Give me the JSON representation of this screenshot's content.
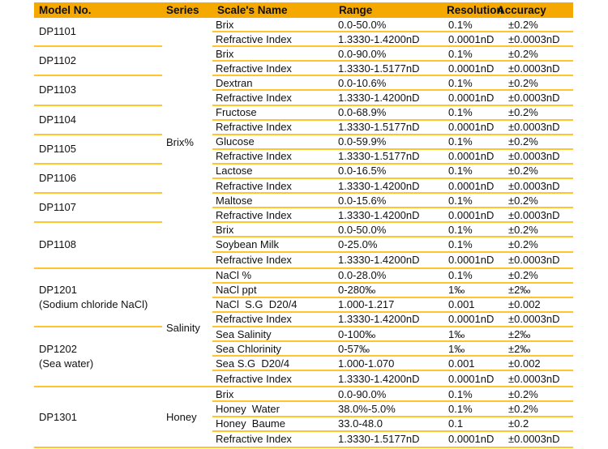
{
  "colors": {
    "header_bg": "#F5A800",
    "row_line": "#FFC42E",
    "text": "#111111"
  },
  "columns": [
    {
      "label": "Model No."
    },
    {
      "label": "Series"
    },
    {
      "label": "Scale's Name"
    },
    {
      "label": "Range"
    },
    {
      "label": "Resolution"
    },
    {
      "label": "Accuracy"
    }
  ],
  "sections": [
    {
      "series": "Brix%",
      "groups": [
        {
          "model": "DP1101",
          "note": "",
          "rows": [
            {
              "scale": "Brix",
              "range": "0.0-50.0%",
              "resolution": "0.1%",
              "accuracy": "±0.2%"
            },
            {
              "scale": "Refractive Index",
              "range": "1.3330-1.4200nD",
              "resolution": "0.0001nD",
              "accuracy": "±0.0003nD"
            }
          ]
        },
        {
          "model": "DP1102",
          "note": "",
          "rows": [
            {
              "scale": "Brix",
              "range": "0.0-90.0%",
              "resolution": "0.1%",
              "accuracy": "±0.2%"
            },
            {
              "scale": "Refractive Index",
              "range": "1.3330-1.5177nD",
              "resolution": "0.0001nD",
              "accuracy": "±0.0003nD"
            }
          ]
        },
        {
          "model": "DP1103",
          "note": "",
          "rows": [
            {
              "scale": "Dextran",
              "range": "0.0-10.6%",
              "resolution": "0.1%",
              "accuracy": "±0.2%"
            },
            {
              "scale": "Refractive Index",
              "range": "1.3330-1.4200nD",
              "resolution": "0.0001nD",
              "accuracy": "±0.0003nD"
            }
          ]
        },
        {
          "model": "DP1104",
          "note": "",
          "rows": [
            {
              "scale": "Fructose",
              "range": "0.0-68.9%",
              "resolution": "0.1%",
              "accuracy": "±0.2%"
            },
            {
              "scale": "Refractive Index",
              "range": "1.3330-1.5177nD",
              "resolution": "0.0001nD",
              "accuracy": "±0.0003nD"
            }
          ]
        },
        {
          "model": "DP1105",
          "note": "",
          "rows": [
            {
              "scale": "Glucose",
              "range": "0.0-59.9%",
              "resolution": "0.1%",
              "accuracy": "±0.2%"
            },
            {
              "scale": "Refractive Index",
              "range": "1.3330-1.5177nD",
              "resolution": "0.0001nD",
              "accuracy": "±0.0003nD"
            }
          ]
        },
        {
          "model": "DP1106",
          "note": "",
          "rows": [
            {
              "scale": "Lactose",
              "range": "0.0-16.5%",
              "resolution": "0.1%",
              "accuracy": "±0.2%"
            },
            {
              "scale": "Refractive Index",
              "range": "1.3330-1.4200nD",
              "resolution": "0.0001nD",
              "accuracy": "±0.0003nD"
            }
          ]
        },
        {
          "model": "DP1107",
          "note": "",
          "rows": [
            {
              "scale": "Maltose",
              "range": "0.0-15.6%",
              "resolution": "0.1%",
              "accuracy": "±0.2%"
            },
            {
              "scale": "Refractive Index",
              "range": "1.3330-1.4200nD",
              "resolution": "0.0001nD",
              "accuracy": "±0.0003nD"
            }
          ]
        },
        {
          "model": "DP1108",
          "note": "",
          "rows": [
            {
              "scale": "Brix",
              "range": "0.0-50.0%",
              "resolution": "0.1%",
              "accuracy": "±0.2%"
            },
            {
              "scale": "Soybean Milk",
              "range": "0-25.0%",
              "resolution": "0.1%",
              "accuracy": "±0.2%"
            },
            {
              "scale": "Refractive Index",
              "range": "1.3330-1.4200nD",
              "resolution": "0.0001nD",
              "accuracy": "±0.0003nD"
            }
          ]
        }
      ]
    },
    {
      "series": "Salinity",
      "groups": [
        {
          "model": "DP1201",
          "note": "(Sodium chloride NaCl)",
          "rows": [
            {
              "scale": "NaCl %",
              "range": "0.0-28.0%",
              "resolution": "0.1%",
              "accuracy": "±0.2%"
            },
            {
              "scale": "NaCl ppt",
              "range": "0-280‰",
              "resolution": "1‰",
              "accuracy": "±2‰"
            },
            {
              "scale": "NaCl  S.G  D20/4",
              "range": "1.000-1.217",
              "resolution": "0.001",
              "accuracy": "±0.002"
            },
            {
              "scale": "Refractive Index",
              "range": "1.3330-1.4200nD",
              "resolution": "0.0001nD",
              "accuracy": "±0.0003nD"
            }
          ]
        },
        {
          "model": "DP1202",
          "note": "(Sea water)",
          "rows": [
            {
              "scale": "Sea Salinity",
              "range": "0-100‰",
              "resolution": "1‰",
              "accuracy": "±2‰"
            },
            {
              "scale": "Sea Chlorinity",
              "range": "0-57‰",
              "resolution": "1‰",
              "accuracy": "±2‰"
            },
            {
              "scale": "Sea S.G  D20/4",
              "range": "1.000-1.070",
              "resolution": "0.001",
              "accuracy": "±0.002"
            },
            {
              "scale": "Refractive Index",
              "range": "1.3330-1.4200nD",
              "resolution": "0.0001nD",
              "accuracy": "±0.0003nD"
            }
          ]
        }
      ]
    },
    {
      "series": "Honey",
      "groups": [
        {
          "model": "DP1301",
          "note": "",
          "rows": [
            {
              "scale": "Brix",
              "range": "0.0-90.0%",
              "resolution": "0.1%",
              "accuracy": "±0.2%"
            },
            {
              "scale": "Honey  Water",
              "range": "38.0%-5.0%",
              "resolution": "0.1%",
              "accuracy": "±0.2%"
            },
            {
              "scale": "Honey  Baume",
              "range": "33.0-48.0",
              "resolution": "0.1",
              "accuracy": "±0.2"
            },
            {
              "scale": "Refractive Index",
              "range": "1.3330-1.5177nD",
              "resolution": "0.0001nD",
              "accuracy": "±0.0003nD"
            }
          ]
        }
      ]
    }
  ]
}
